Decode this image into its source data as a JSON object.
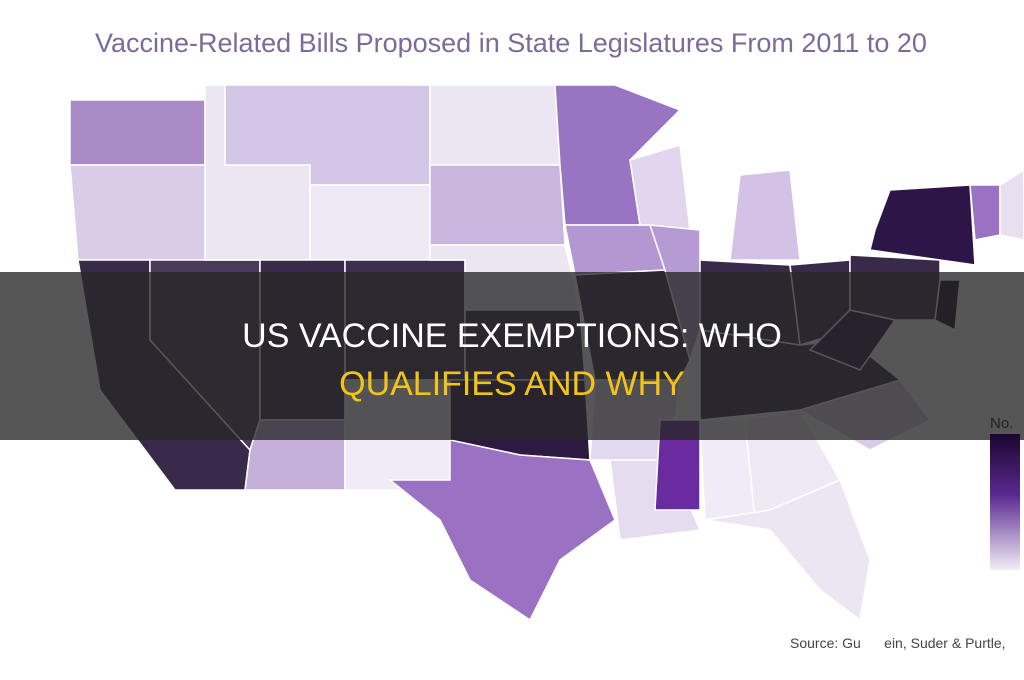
{
  "map": {
    "title": "Vaccine-Related Bills Proposed in State Legislatures From 2011 to 20",
    "legend_label": "No.",
    "source": "Source: Gu      ein, Suder & Purtle,"
  },
  "banner": {
    "line1": "US VACCINE EXEMPTIONS: WHO",
    "line2": "QUALIFIES AND WHY"
  }
}
